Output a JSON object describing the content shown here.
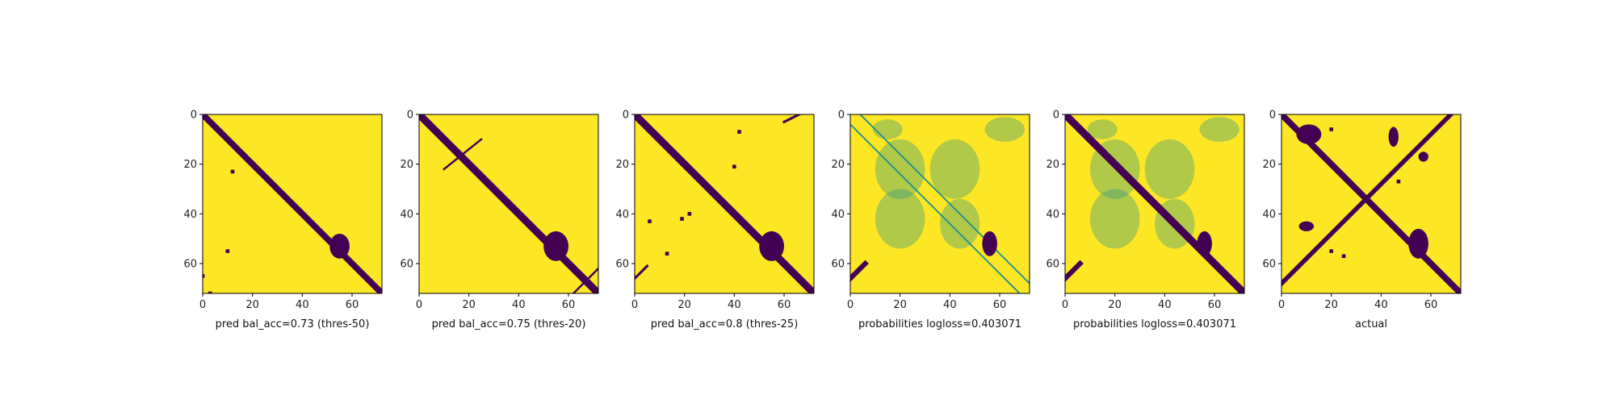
{
  "figure": {
    "colors": {
      "low": "#440154",
      "high": "#fde725",
      "mid": "#21918c",
      "frame": "#000000"
    }
  },
  "chart_data": [
    {
      "type": "heatmap",
      "xlabel": "pred bal_acc=0.73 (thres-50)",
      "xlim": [
        0,
        72
      ],
      "ylim": [
        72,
        0
      ],
      "xticks": [
        0,
        20,
        40,
        60
      ],
      "yticks": [
        0,
        20,
        40,
        60
      ],
      "colormap": "viridis",
      "binary": true,
      "features": [
        {
          "kind": "band",
          "from": [
            0,
            0
          ],
          "to": [
            72,
            72
          ],
          "width": 2.5
        },
        {
          "kind": "blob",
          "center": [
            55,
            53
          ],
          "size": [
            4,
            5
          ]
        },
        {
          "kind": "dots",
          "points": [
            [
              12,
              23
            ],
            [
              10,
              55
            ],
            [
              3,
              72
            ],
            [
              0,
              65
            ]
          ]
        }
      ]
    },
    {
      "type": "heatmap",
      "xlabel": "pred bal_acc=0.75 (thres-20)",
      "xlim": [
        0,
        72
      ],
      "ylim": [
        72,
        0
      ],
      "xticks": [
        0,
        20,
        40,
        60
      ],
      "yticks": [
        0,
        20,
        40,
        60
      ],
      "colormap": "viridis",
      "binary": true,
      "features": [
        {
          "kind": "band",
          "from": [
            0,
            0
          ],
          "to": [
            72,
            72
          ],
          "width": 3
        },
        {
          "kind": "blob",
          "center": [
            55,
            53
          ],
          "size": [
            5,
            6
          ]
        },
        {
          "kind": "segment",
          "from": [
            10,
            22
          ],
          "to": [
            25,
            10
          ],
          "width": 0.8
        },
        {
          "kind": "segment",
          "from": [
            62,
            72
          ],
          "to": [
            72,
            62
          ],
          "width": 0.8
        }
      ]
    },
    {
      "type": "heatmap",
      "xlabel": "pred bal_acc=0.8 (thres-25)",
      "xlim": [
        0,
        72
      ],
      "ylim": [
        72,
        0
      ],
      "xticks": [
        0,
        20,
        40,
        60
      ],
      "yticks": [
        0,
        20,
        40,
        60
      ],
      "colormap": "viridis",
      "binary": true,
      "features": [
        {
          "kind": "band",
          "from": [
            0,
            0
          ],
          "to": [
            72,
            72
          ],
          "width": 3
        },
        {
          "kind": "blob",
          "center": [
            55,
            53
          ],
          "size": [
            5,
            6
          ]
        },
        {
          "kind": "dots",
          "points": [
            [
              42,
              7
            ],
            [
              40,
              21
            ],
            [
              19,
              42
            ],
            [
              6,
              43
            ],
            [
              22,
              40
            ],
            [
              13,
              56
            ]
          ]
        },
        {
          "kind": "segment",
          "from": [
            60,
            3
          ],
          "to": [
            66,
            0
          ],
          "width": 1
        },
        {
          "kind": "segment",
          "from": [
            0,
            66
          ],
          "to": [
            5,
            61
          ],
          "width": 1
        }
      ]
    },
    {
      "type": "heatmap",
      "xlabel": "probabilities logloss=0.403071",
      "xlim": [
        0,
        72
      ],
      "ylim": [
        72,
        0
      ],
      "xticks": [
        0,
        20,
        40,
        60
      ],
      "yticks": [
        0,
        20,
        40,
        60
      ],
      "colormap": "viridis",
      "binary": false,
      "features": [
        {
          "kind": "faint",
          "center": [
            20,
            22
          ],
          "size": [
            10,
            12
          ]
        },
        {
          "kind": "faint",
          "center": [
            42,
            22
          ],
          "size": [
            10,
            12
          ]
        },
        {
          "kind": "faint",
          "center": [
            20,
            42
          ],
          "size": [
            10,
            12
          ]
        },
        {
          "kind": "faint",
          "center": [
            44,
            44
          ],
          "size": [
            8,
            10
          ]
        },
        {
          "kind": "faint",
          "center": [
            15,
            6
          ],
          "size": [
            6,
            4
          ]
        },
        {
          "kind": "faint",
          "center": [
            62,
            6
          ],
          "size": [
            8,
            5
          ]
        },
        {
          "kind": "line",
          "from": [
            0,
            4
          ],
          "to": [
            68,
            72
          ],
          "width": 0.6
        },
        {
          "kind": "line",
          "from": [
            4,
            0
          ],
          "to": [
            72,
            68
          ],
          "width": 0.6
        },
        {
          "kind": "blob",
          "center": [
            56,
            52
          ],
          "size": [
            3,
            5
          ]
        },
        {
          "kind": "segment",
          "from": [
            0,
            66
          ],
          "to": [
            6,
            60
          ],
          "width": 2
        }
      ]
    },
    {
      "type": "heatmap",
      "xlabel": "probabilities logloss=0.403071",
      "xlim": [
        0,
        72
      ],
      "ylim": [
        72,
        0
      ],
      "xticks": [
        0,
        20,
        40,
        60
      ],
      "yticks": [
        0,
        20,
        40,
        60
      ],
      "colormap": "viridis",
      "binary": false,
      "features": [
        {
          "kind": "faint",
          "center": [
            20,
            22
          ],
          "size": [
            10,
            12
          ]
        },
        {
          "kind": "faint",
          "center": [
            42,
            22
          ],
          "size": [
            10,
            12
          ]
        },
        {
          "kind": "faint",
          "center": [
            20,
            42
          ],
          "size": [
            10,
            12
          ]
        },
        {
          "kind": "faint",
          "center": [
            44,
            44
          ],
          "size": [
            8,
            10
          ]
        },
        {
          "kind": "faint",
          "center": [
            15,
            6
          ],
          "size": [
            6,
            4
          ]
        },
        {
          "kind": "faint",
          "center": [
            62,
            6
          ],
          "size": [
            8,
            5
          ]
        },
        {
          "kind": "band",
          "from": [
            0,
            0
          ],
          "to": [
            72,
            72
          ],
          "width": 3
        },
        {
          "kind": "blob",
          "center": [
            56,
            52
          ],
          "size": [
            3,
            5
          ]
        },
        {
          "kind": "segment",
          "from": [
            0,
            66
          ],
          "to": [
            6,
            60
          ],
          "width": 2
        }
      ]
    },
    {
      "type": "heatmap",
      "xlabel": "actual",
      "xlim": [
        0,
        72
      ],
      "ylim": [
        72,
        0
      ],
      "xticks": [
        0,
        20,
        40,
        60
      ],
      "yticks": [
        0,
        20,
        40,
        60
      ],
      "colormap": "viridis",
      "binary": true,
      "features": [
        {
          "kind": "band",
          "from": [
            0,
            0
          ],
          "to": [
            72,
            72
          ],
          "width": 2.5
        },
        {
          "kind": "band",
          "from": [
            0,
            68
          ],
          "to": [
            68,
            0
          ],
          "width": 1.8
        },
        {
          "kind": "blob",
          "center": [
            55,
            52
          ],
          "size": [
            4,
            6
          ]
        },
        {
          "kind": "blob",
          "center": [
            11,
            8
          ],
          "size": [
            5,
            4
          ]
        },
        {
          "kind": "blob",
          "center": [
            45,
            9
          ],
          "size": [
            2,
            4
          ]
        },
        {
          "kind": "blob",
          "center": [
            10,
            45
          ],
          "size": [
            3,
            2
          ]
        },
        {
          "kind": "blob",
          "center": [
            57,
            17
          ],
          "size": [
            2,
            2
          ]
        },
        {
          "kind": "dots",
          "points": [
            [
              20,
              6
            ],
            [
              47,
              27
            ],
            [
              20,
              55
            ],
            [
              25,
              57
            ]
          ]
        }
      ]
    }
  ]
}
